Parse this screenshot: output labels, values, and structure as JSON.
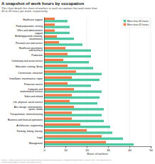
{
  "chart_data": {
    "type": "bar",
    "orientation": "horizontal",
    "title": "A snapshot of work hours by occupation",
    "subtitle": "This chart details the share of workers in each occupation that work more than\n40 or 45 hours per week, respectively.",
    "footer": "Source: Authors' analysis of the CPS samples at the Current Population Survey Outgoing Rotation Group, 2013 to 2014. The data has been\npooled across states to ensure large sample sizes.",
    "xlabel": "Share of workers",
    "categories": [
      "Healthcare support",
      "Food preparation, serving",
      "Office and administrative\nsupport",
      "Building/grounds cleaning,\nmaintenance",
      "Personal care and service",
      "Healthcare practitioner\nand technical",
      "Production",
      "Community and social service",
      "Education, training, library",
      "Construction, extraction",
      "Installation, maintenance, repair",
      "Protective service",
      "Computer and\nmathematical science",
      "Sales and related",
      "Life, physical, social science",
      "Arts, design, entertainment,\nsports, media",
      "Transportation, material moving",
      "Business and financial operations",
      "Architecture, engineering",
      "Farming, fishing, forestry",
      "Legal",
      "Management"
    ],
    "series": [
      {
        "name": "More than 40 hours",
        "color": "#4dc8a0",
        "values": [
          11,
          12,
          12,
          14,
          18,
          22,
          22,
          21,
          23,
          27,
          26,
          22,
          27,
          26,
          25,
          28,
          27,
          28,
          31,
          32,
          37,
          42
        ]
      },
      {
        "name": "More than 45 hours",
        "color": "#f07b4a",
        "values": [
          5,
          5,
          5,
          6,
          7,
          10,
          11,
          9,
          11,
          15,
          13,
          11,
          14,
          13,
          12,
          14,
          13,
          13,
          17,
          20,
          27,
          29
        ]
      }
    ],
    "xlim": [
      0,
      50
    ],
    "xticks": [
      0,
      10,
      20,
      30,
      40,
      50
    ],
    "grid": true,
    "legend": "upper right"
  }
}
